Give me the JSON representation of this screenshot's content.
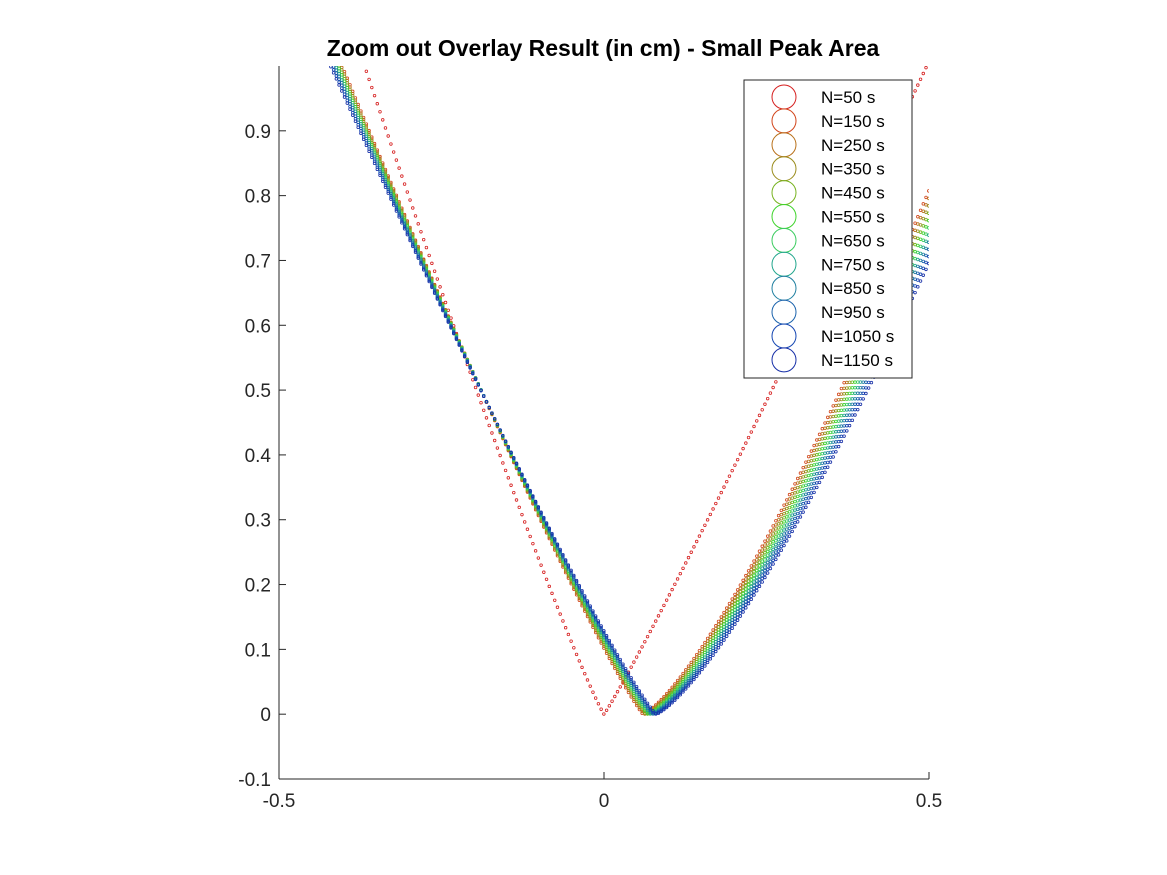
{
  "chart_data": {
    "type": "scatter",
    "title": "Zoom out Overlay Result (in cm) - Small Peak Area",
    "xlabel": "",
    "ylabel": "",
    "xlim": [
      -0.5,
      0.5
    ],
    "ylim": [
      -0.1,
      1.0
    ],
    "xticks": [
      "-0.5",
      "0",
      "0.5"
    ],
    "yticks": [
      "-0.1",
      "0",
      "0.1",
      "0.2",
      "0.3",
      "0.4",
      "0.5",
      "0.6",
      "0.7",
      "0.8",
      "0.9"
    ],
    "grid": false,
    "legend_position": "top-right",
    "marker": "circle",
    "series": [
      {
        "name": "N=50 s",
        "color": "#d62020",
        "x0": 0.0,
        "steep": [
          3.0,
          2.1
        ],
        "exp": [
          1.1,
          1.06
        ]
      },
      {
        "name": "N=150 s",
        "color": "#d2461c",
        "x0": 0.06,
        "steep": [
          2.37,
          2.35
        ],
        "exp": [
          1.12,
          1.3
        ]
      },
      {
        "name": "N=250 s",
        "color": "#b8701a",
        "x0": 0.062,
        "steep": [
          2.35,
          2.33
        ],
        "exp": [
          1.12,
          1.3
        ]
      },
      {
        "name": "N=350 s",
        "color": "#9a8c1c",
        "x0": 0.064,
        "steep": [
          2.33,
          2.31
        ],
        "exp": [
          1.12,
          1.3
        ]
      },
      {
        "name": "N=450 s",
        "color": "#76b21e",
        "x0": 0.066,
        "steep": [
          2.31,
          2.29
        ],
        "exp": [
          1.12,
          1.3
        ]
      },
      {
        "name": "N=550 s",
        "color": "#3fd42c",
        "x0": 0.068,
        "steep": [
          2.29,
          2.27
        ],
        "exp": [
          1.12,
          1.3
        ]
      },
      {
        "name": "N=650 s",
        "color": "#3ccc60",
        "x0": 0.07,
        "steep": [
          2.27,
          2.25
        ],
        "exp": [
          1.12,
          1.3
        ]
      },
      {
        "name": "N=750 s",
        "color": "#20a58c",
        "x0": 0.072,
        "steep": [
          2.25,
          2.23
        ],
        "exp": [
          1.12,
          1.3
        ]
      },
      {
        "name": "N=850 s",
        "color": "#1f7fa0",
        "x0": 0.074,
        "steep": [
          2.23,
          2.21
        ],
        "exp": [
          1.12,
          1.3
        ]
      },
      {
        "name": "N=950 s",
        "color": "#1a62ac",
        "x0": 0.076,
        "steep": [
          2.21,
          2.19
        ],
        "exp": [
          1.12,
          1.3
        ]
      },
      {
        "name": "N=1050 s",
        "color": "#1446b2",
        "x0": 0.078,
        "steep": [
          2.19,
          2.17
        ],
        "exp": [
          1.12,
          1.3
        ]
      },
      {
        "name": "N=1150 s",
        "color": "#1830a8",
        "x0": 0.08,
        "steep": [
          2.17,
          2.15
        ],
        "exp": [
          1.12,
          1.3
        ]
      }
    ]
  }
}
